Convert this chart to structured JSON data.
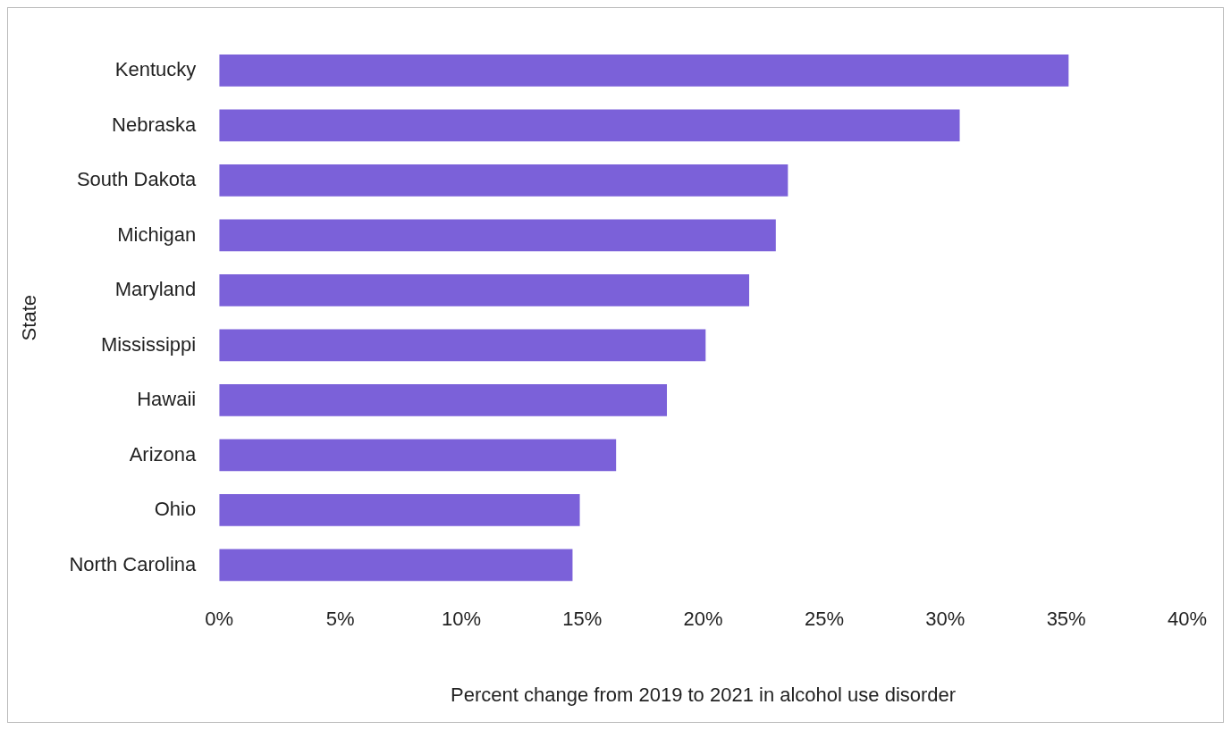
{
  "chart_data": {
    "type": "bar",
    "orientation": "horizontal",
    "xlabel": "Percent change from 2019 to 2021 in alcohol use disorder",
    "ylabel": "State",
    "categories": [
      "Kentucky",
      "Nebraska",
      "South Dakota",
      "Michigan",
      "Maryland",
      "Mississippi",
      "Hawaii",
      "Arizona",
      "Ohio",
      "North Carolina"
    ],
    "values": [
      35.1,
      30.6,
      23.5,
      23.0,
      21.9,
      20.1,
      18.5,
      16.4,
      14.9,
      14.6
    ],
    "color": "#7b61d9",
    "xlim": [
      0,
      40
    ],
    "xticks": [
      {
        "value": 0,
        "label": "0%"
      },
      {
        "value": 5,
        "label": "5%"
      },
      {
        "value": 10,
        "label": "10%"
      },
      {
        "value": 15,
        "label": "15%"
      },
      {
        "value": 20,
        "label": "20%"
      },
      {
        "value": 25,
        "label": "25%"
      },
      {
        "value": 30,
        "label": "30%"
      },
      {
        "value": 35,
        "label": "35%"
      },
      {
        "value": 40,
        "label": "40%"
      }
    ],
    "grid": false,
    "legend": false
  }
}
